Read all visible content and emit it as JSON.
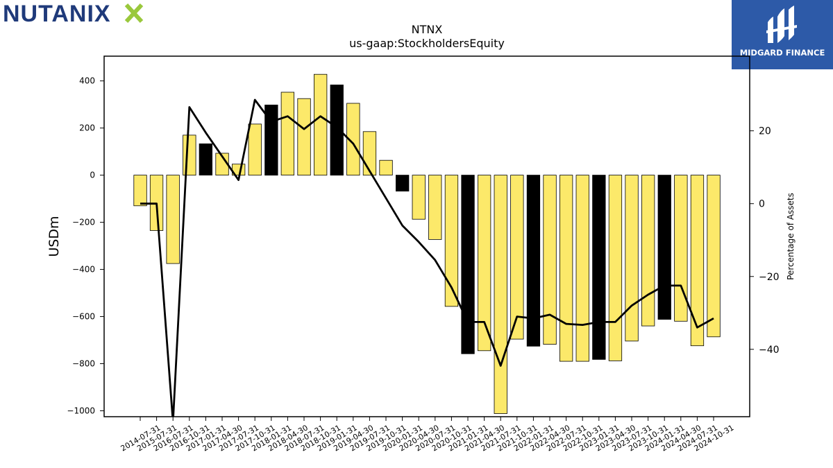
{
  "logos": {
    "left_text": "NUTANIX",
    "right_text": "MIDGARD FINANCE",
    "colors": {
      "nutanix_blue": "#1f3a7a",
      "nutanix_green": "#9ac83c",
      "midgard_bg": "#2d5aa8"
    }
  },
  "chart_data": {
    "type": "bar",
    "title": "NTNX",
    "subtitle": "us-gaap:StockholdersEquity",
    "ylabel": "USDm",
    "y2label": "Percentage of Assets",
    "ylim": [
      -1025,
      505
    ],
    "y2lim": [
      -58.5,
      40.5
    ],
    "yticks": [
      -1000,
      -800,
      -600,
      -400,
      -200,
      0,
      200,
      400
    ],
    "y2ticks": [
      -40,
      -20,
      0,
      20
    ],
    "categories": [
      "2014-07-31",
      "2015-07-31",
      "2016-07-31",
      "2016-10-31",
      "2017-01-31",
      "2017-04-30",
      "2017-07-31",
      "2017-10-31",
      "2018-01-31",
      "2018-04-30",
      "2018-07-31",
      "2018-10-31",
      "2019-01-31",
      "2019-04-30",
      "2019-07-31",
      "2019-10-31",
      "2020-01-31",
      "2020-04-30",
      "2020-07-31",
      "2020-10-31",
      "2021-01-31",
      "2021-04-30",
      "2021-07-31",
      "2021-10-31",
      "2022-01-31",
      "2022-04-30",
      "2022-07-31",
      "2022-10-31",
      "2023-01-31",
      "2023-04-30",
      "2023-07-31",
      "2023-10-31",
      "2024-01-31",
      "2024-04-30",
      "2024-07-31",
      "2024-10-31"
    ],
    "bar_slots": [
      0,
      1,
      2,
      3,
      4,
      5,
      6,
      7,
      8,
      9,
      10,
      11,
      12,
      13,
      14,
      15,
      16,
      17,
      18,
      19,
      20,
      21,
      22,
      23,
      24,
      25,
      26,
      27,
      28,
      29,
      30,
      31,
      32,
      33,
      34,
      35
    ],
    "series": [
      {
        "kind": "bar",
        "values": [
          -130,
          -235,
          -375,
          170,
          133,
          93,
          47,
          217,
          298,
          352,
          325,
          428,
          383,
          305,
          185,
          63,
          -68,
          -187,
          -273,
          -557,
          -758,
          -745,
          -1012,
          -696,
          -726,
          -718,
          -790,
          -790,
          -782,
          -788,
          -704,
          -640,
          -612,
          -620,
          -724,
          -686
        ],
        "highlight": [
          false,
          false,
          false,
          false,
          true,
          false,
          false,
          false,
          true,
          false,
          false,
          false,
          true,
          false,
          false,
          false,
          true,
          false,
          false,
          false,
          true,
          false,
          false,
          false,
          true,
          false,
          false,
          false,
          true,
          false,
          false,
          false,
          true,
          false,
          false,
          false
        ],
        "color": "#fce96a",
        "highlight_color": "#000000"
      },
      {
        "kind": "line",
        "axis": "right",
        "values": [
          0,
          0,
          -60,
          26.5,
          19.5,
          13,
          6.5,
          28.5,
          22.5,
          24,
          20.5,
          24,
          21,
          16.5,
          9,
          1.5,
          -6,
          -10.5,
          -15.5,
          -23,
          -32.5,
          -32.5,
          -44.5,
          -31,
          -31.5,
          -30.5,
          -33,
          -33.3,
          -32.5,
          -32.5,
          -28,
          -25,
          -22.5,
          -22.5,
          -34,
          -31.5
        ],
        "color": "#000000"
      }
    ]
  }
}
